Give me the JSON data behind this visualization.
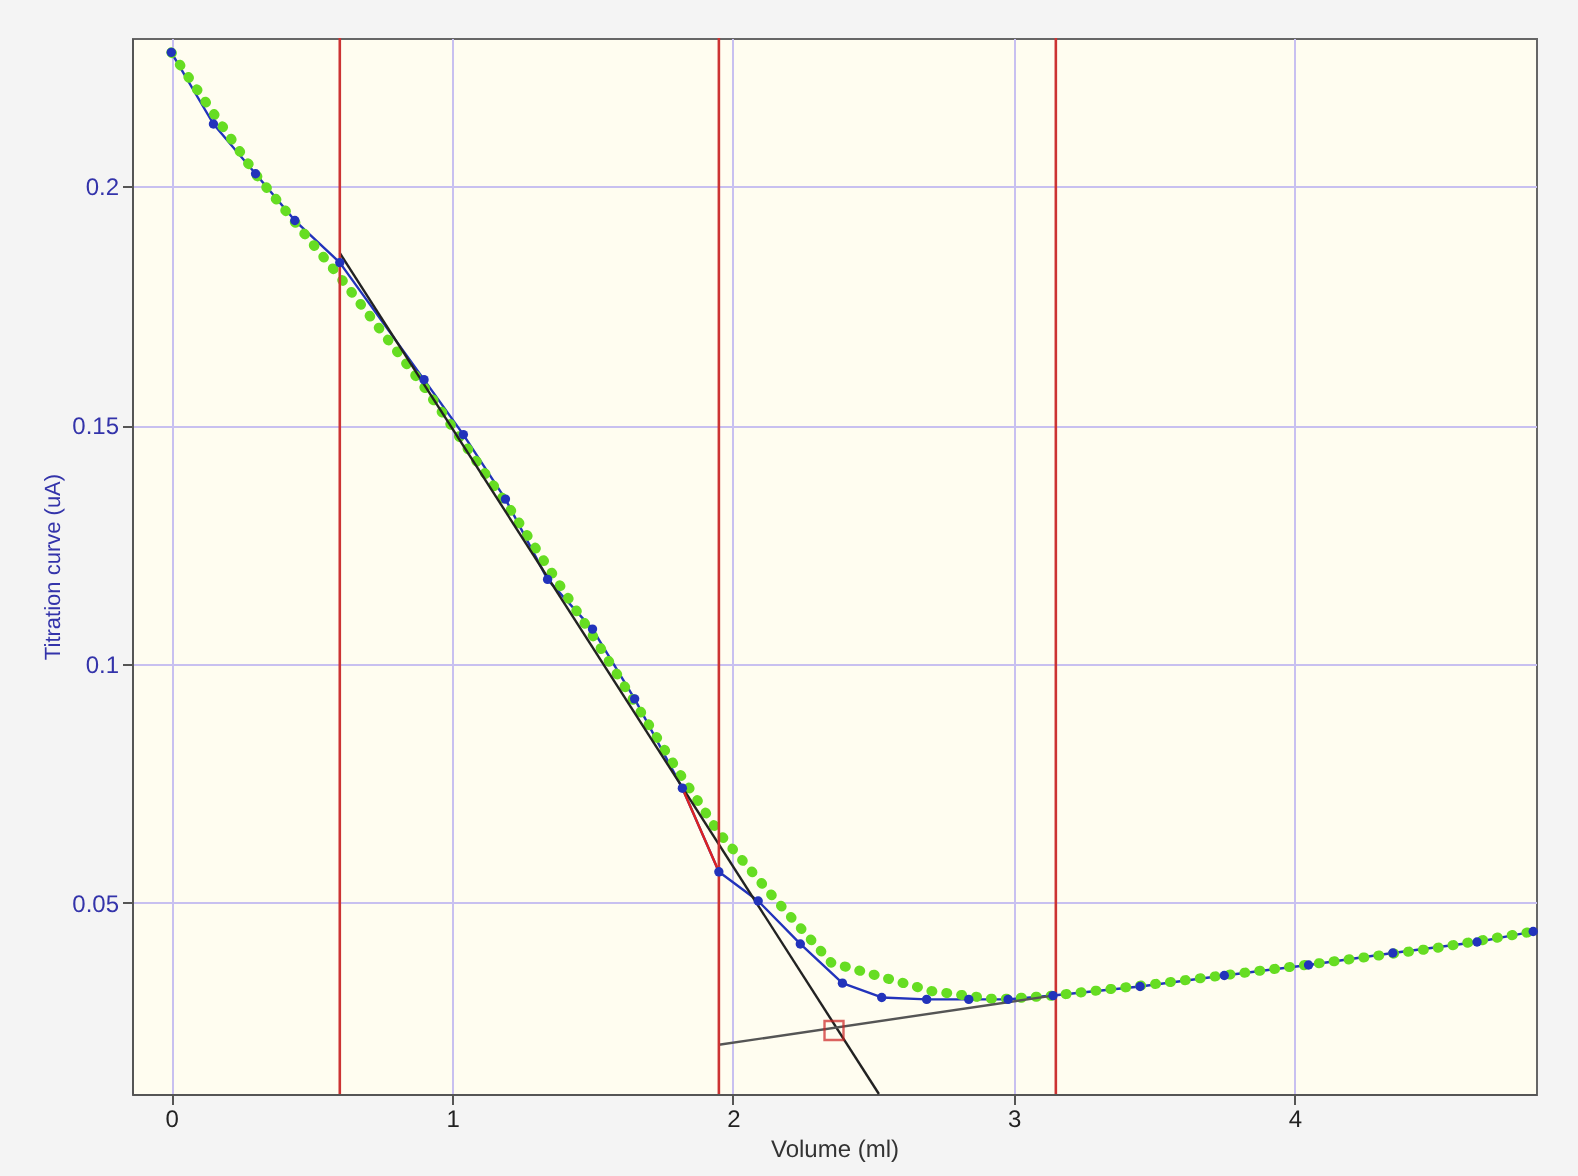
{
  "chart_data": {
    "type": "line",
    "xlabel": "Volume (ml)",
    "ylabel": "Titration curve (uA)",
    "xlim": [
      -0.14,
      4.86
    ],
    "ylim": [
      0.01,
      0.231
    ],
    "xticks": [
      0,
      1,
      2,
      3,
      4
    ],
    "yticks": [
      0.05,
      0.1,
      0.15,
      0.2
    ],
    "grid": true,
    "series": [
      {
        "color": "#2233bb",
        "marker": "circle",
        "line_style": "solid",
        "x": [
          0,
          0.15,
          0.3,
          0.44,
          0.6,
          0.9,
          1.04,
          1.19,
          1.34,
          1.5,
          1.65,
          1.82,
          1.95,
          2.09,
          2.24,
          2.39,
          2.53,
          2.69,
          2.84,
          2.98,
          3.14,
          3.45,
          3.75,
          4.05,
          4.35,
          4.65,
          4.85
        ],
        "values": [
          0.228,
          0.213,
          0.2026,
          0.1928,
          0.184,
          0.1595,
          0.148,
          0.1345,
          0.1177,
          0.1073,
          0.0927,
          0.074,
          0.0565,
          0.0504,
          0.0414,
          0.0332,
          0.0302,
          0.0298,
          0.0298,
          0.0298,
          0.0306,
          0.0325,
          0.0348,
          0.037,
          0.0395,
          0.0418,
          0.044
        ]
      },
      {
        "color": "#66dd22",
        "marker": "none",
        "line_style": "dotted",
        "x": [
          0,
          0.3,
          0.6,
          0.9,
          1.2,
          1.5,
          1.8,
          1.95,
          2.15,
          2.35,
          2.53,
          2.71,
          2.94,
          3.14,
          3.5,
          4.0,
          4.5,
          4.85
        ],
        "values": [
          0.228,
          0.2025,
          0.181,
          0.158,
          0.133,
          0.106,
          0.078,
          0.0647,
          0.0508,
          0.0375,
          0.0345,
          0.0315,
          0.0298,
          0.0306,
          0.033,
          0.0367,
          0.0405,
          0.044
        ]
      },
      {
        "color": "#222222",
        "marker": "none",
        "line_style": "solid",
        "x": [
          0.6,
          2.52
        ],
        "values": [
          0.186,
          0.01
        ]
      },
      {
        "color": "#555555",
        "marker": "none",
        "line_style": "solid",
        "x": [
          1.95,
          3.14
        ],
        "values": [
          0.0203,
          0.0306
        ]
      },
      {
        "color": "#dd2222",
        "marker": "none",
        "line_style": "solid",
        "x": [
          1.82,
          1.95
        ],
        "values": [
          0.074,
          0.0565
        ]
      },
      {
        "type": "scatter",
        "color": "#cc2222",
        "marker": "square",
        "x": [
          2.36
        ],
        "values": [
          0.0233
        ]
      }
    ],
    "ref_lines": [
      {
        "axis": "x",
        "value": 0.6,
        "color": "#cc3333"
      },
      {
        "axis": "x",
        "value": 1.95,
        "color": "#cc3333"
      },
      {
        "axis": "x",
        "value": 3.15,
        "color": "#cc3333"
      }
    ]
  }
}
